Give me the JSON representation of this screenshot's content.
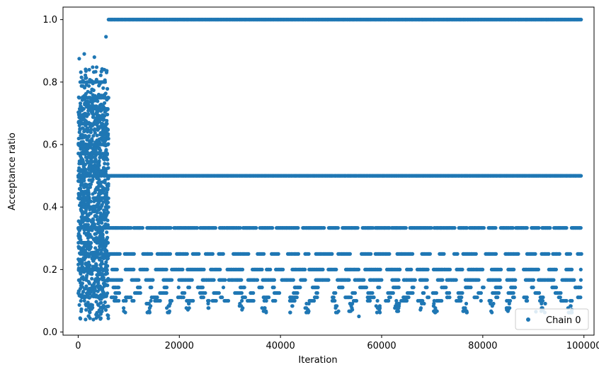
{
  "chart_data": {
    "type": "scatter",
    "title": "",
    "xlabel": "Iteration",
    "ylabel": "Acceptance ratio",
    "xlim": [
      -3000,
      102000
    ],
    "ylim": [
      -0.01,
      1.04
    ],
    "xticks": [
      0,
      20000,
      40000,
      60000,
      80000,
      100000
    ],
    "xtick_labels": [
      "0",
      "20000",
      "40000",
      "60000",
      "80000",
      "100000"
    ],
    "yticks": [
      0.0,
      0.2,
      0.4,
      0.6,
      0.8,
      1.0
    ],
    "ytick_labels": [
      "0.0",
      "0.2",
      "0.4",
      "0.6",
      "0.8",
      "1.0"
    ],
    "grid": false,
    "legend": {
      "position": "lower-right",
      "entries": [
        "Chain 0"
      ]
    },
    "series": [
      {
        "name": "Chain 0",
        "color": "#1f77b4",
        "marker": "circle",
        "description": "per-iteration acceptance ratio",
        "burn_in": {
          "x_range": [
            0,
            6000
          ],
          "y_range": [
            0.04,
            0.95
          ]
        },
        "levels": [
          {
            "y": 1.0,
            "x_range": [
              6000,
              99500
            ],
            "coverage": "continuous"
          },
          {
            "y": 0.5,
            "x_range": [
              6000,
              99500
            ],
            "coverage": "continuous"
          },
          {
            "y": 0.3333,
            "x_range": [
              6000,
              99500
            ],
            "coverage": "mostly continuous"
          },
          {
            "y": 0.25,
            "x_range": [
              6000,
              99500
            ],
            "coverage": "segmented"
          },
          {
            "y": 0.2,
            "x_range": [
              6000,
              99500
            ],
            "coverage": "segmented"
          },
          {
            "y": 0.1667,
            "x_range": [
              6000,
              99500
            ],
            "coverage": "segmented"
          },
          {
            "y": 0.1429,
            "x_range": [
              6000,
              99500
            ],
            "coverage": "sparse"
          },
          {
            "y": 0.125,
            "x_range": [
              6000,
              99500
            ],
            "coverage": "sparse"
          },
          {
            "y": 0.1111,
            "x_range": [
              6000,
              99500
            ],
            "coverage": "sparse"
          },
          {
            "y": 0.1,
            "x_range": [
              6000,
              99500
            ],
            "coverage": "sparse"
          }
        ],
        "notable_points": [
          {
            "x": 5500,
            "y": 0.945
          },
          {
            "x": 1200,
            "y": 0.89
          },
          {
            "x": 3200,
            "y": 0.88
          },
          {
            "x": 200,
            "y": 0.875
          },
          {
            "x": 3000,
            "y": 0.04
          },
          {
            "x": 90500,
            "y": 0.065
          },
          {
            "x": 55500,
            "y": 0.05
          }
        ]
      }
    ]
  }
}
